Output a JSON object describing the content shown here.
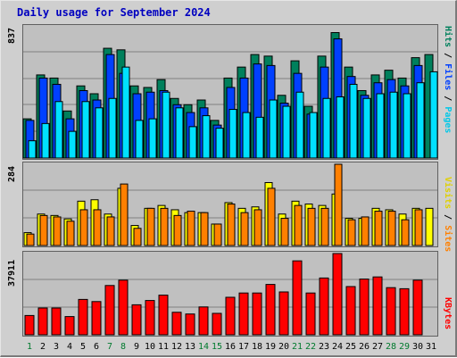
{
  "title": "Daily usage for September 2024",
  "colors": {
    "hits": "#00805c",
    "files": "#0040ff",
    "pages": "#00e0ff",
    "visits": "#ffff00",
    "sites": "#ff8000",
    "kbytes": "#ff0000",
    "title": "#0000c0",
    "weekend": "#007a2e"
  },
  "chart_data": [
    {
      "type": "bar",
      "x": [
        1,
        2,
        3,
        4,
        5,
        6,
        7,
        8,
        9,
        10,
        11,
        12,
        13,
        14,
        15,
        16,
        17,
        18,
        19,
        20,
        21,
        22,
        23,
        24,
        25,
        26,
        27,
        28,
        29,
        30,
        31
      ],
      "y_max_label": "837",
      "ylim": [
        0,
        837
      ],
      "series": [
        {
          "name": "Hits",
          "values": [
            250,
            530,
            510,
            300,
            460,
            410,
            700,
            690,
            460,
            450,
            500,
            380,
            340,
            370,
            240,
            510,
            580,
            660,
            650,
            400,
            620,
            330,
            650,
            800,
            580,
            430,
            530,
            560,
            510,
            640,
            660
          ]
        },
        {
          "name": "Files",
          "values": [
            240,
            510,
            470,
            250,
            430,
            370,
            660,
            540,
            410,
            420,
            430,
            340,
            290,
            320,
            210,
            450,
            510,
            600,
            590,
            350,
            540,
            280,
            580,
            760,
            520,
            400,
            480,
            500,
            460,
            590,
            0
          ]
        },
        {
          "name": "Pages",
          "values": [
            110,
            220,
            360,
            170,
            360,
            320,
            380,
            580,
            240,
            250,
            420,
            320,
            200,
            270,
            190,
            310,
            290,
            260,
            370,
            330,
            420,
            290,
            380,
            390,
            470,
            380,
            410,
            420,
            410,
            480,
            550
          ]
        }
      ],
      "ylabel": "Pages / Files / Hits"
    },
    {
      "type": "bar",
      "x": [
        1,
        2,
        3,
        4,
        5,
        6,
        7,
        8,
        9,
        10,
        11,
        12,
        13,
        14,
        15,
        16,
        17,
        18,
        19,
        20,
        21,
        22,
        23,
        24,
        25,
        26,
        27,
        28,
        29,
        30,
        31
      ],
      "y_max_label": "284",
      "ylim": [
        0,
        284
      ],
      "series": [
        {
          "name": "Visits",
          "values": [
            45,
            110,
            105,
            93,
            155,
            160,
            110,
            200,
            70,
            130,
            140,
            125,
            115,
            115,
            75,
            150,
            130,
            135,
            220,
            110,
            155,
            145,
            140,
            180,
            95,
            95,
            130,
            125,
            110,
            130,
            130
          ]
        },
        {
          "name": "Sites",
          "values": [
            40,
            105,
            100,
            85,
            125,
            125,
            100,
            215,
            60,
            130,
            130,
            105,
            120,
            115,
            75,
            145,
            115,
            125,
            200,
            95,
            140,
            130,
            130,
            284,
            90,
            100,
            120,
            120,
            90,
            125,
            0
          ]
        }
      ],
      "ylabel": "Sites / Visits"
    },
    {
      "type": "bar",
      "x": [
        1,
        2,
        3,
        4,
        5,
        6,
        7,
        8,
        9,
        10,
        11,
        12,
        13,
        14,
        15,
        16,
        17,
        18,
        19,
        20,
        21,
        22,
        23,
        24,
        25,
        26,
        27,
        28,
        29,
        30,
        31
      ],
      "y_max_label": "37911",
      "ylim": [
        0,
        37911
      ],
      "series": [
        {
          "name": "KBytes",
          "values": [
            9000,
            12500,
            12500,
            8500,
            16500,
            15500,
            23000,
            25500,
            14000,
            16000,
            18500,
            10500,
            9700,
            13000,
            10000,
            17500,
            19500,
            19500,
            23500,
            20000,
            34500,
            19500,
            26500,
            37911,
            22500,
            26000,
            27000,
            22000,
            21500,
            25500,
            0
          ]
        }
      ],
      "ylabel": "KBytes"
    }
  ],
  "weekend_days": [
    1,
    7,
    8,
    14,
    15,
    21,
    22,
    28,
    29
  ]
}
